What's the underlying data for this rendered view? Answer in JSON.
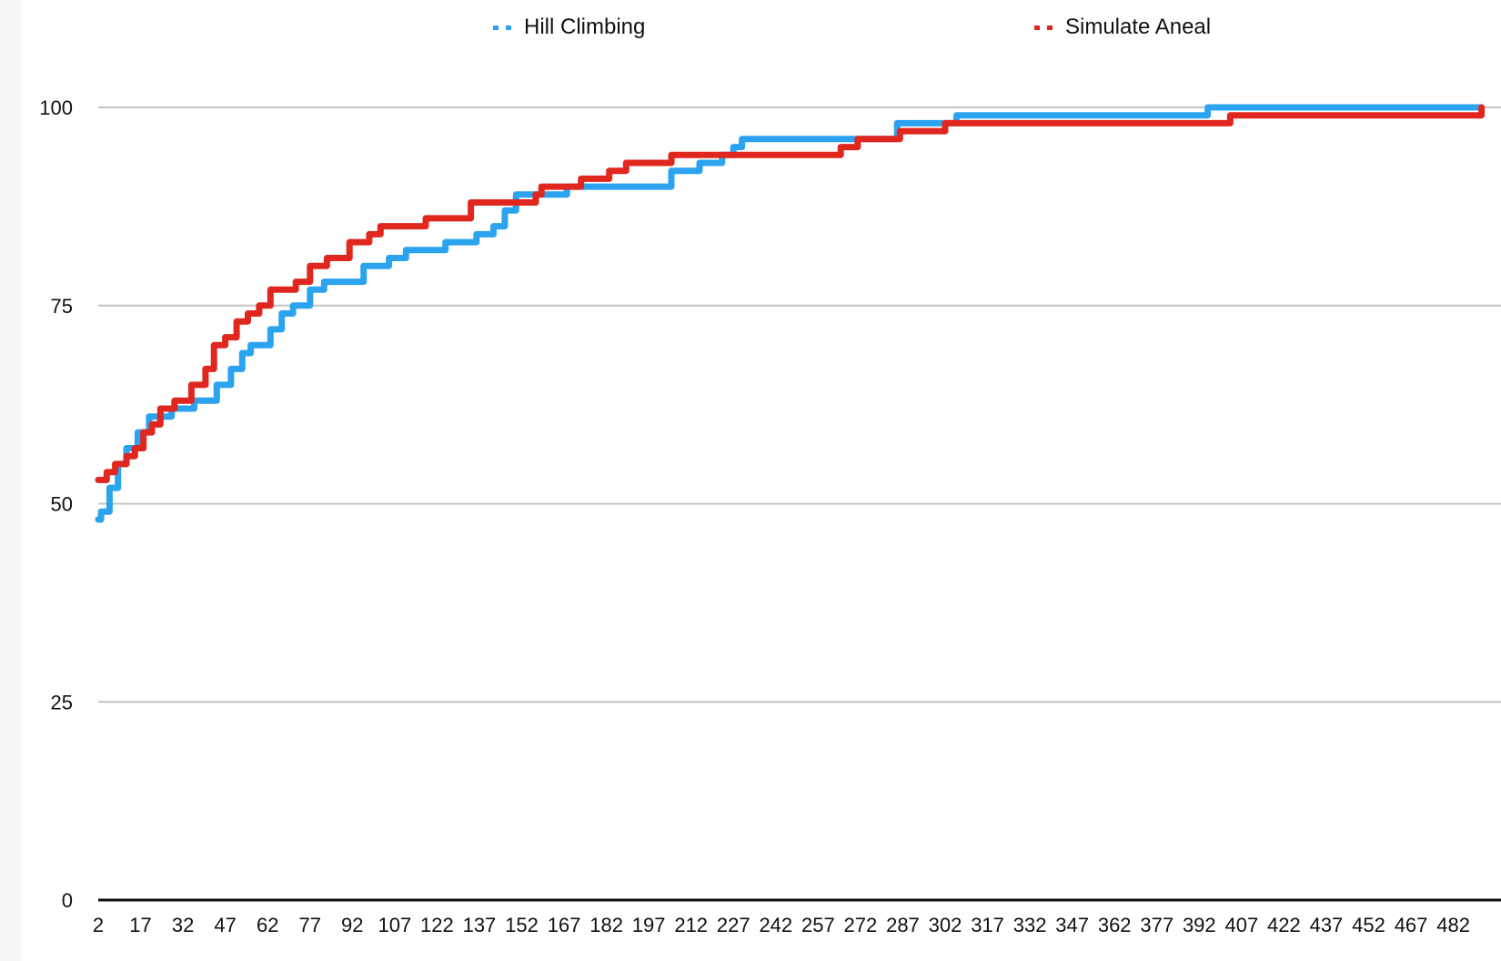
{
  "chart_data": {
    "type": "line",
    "title": "",
    "xlabel": "",
    "ylabel": "",
    "xlim": [
      2,
      492
    ],
    "ylim": [
      0,
      100
    ],
    "x_tick_labels": [
      "2",
      "17",
      "32",
      "47",
      "62",
      "77",
      "92",
      "107",
      "122",
      "137",
      "152",
      "167",
      "182",
      "197",
      "212",
      "227",
      "242",
      "257",
      "272",
      "287",
      "302",
      "317",
      "332",
      "347",
      "362",
      "377",
      "392",
      "407",
      "422",
      "437",
      "452",
      "467",
      "482"
    ],
    "y_tick_labels": [
      "0",
      "25",
      "50",
      "75",
      "100"
    ],
    "grid": true,
    "legend_position": "top",
    "series": [
      {
        "name": "Hill Climbing",
        "color": "#2ba3ef",
        "step_points": [
          [
            2,
            48
          ],
          [
            3,
            49
          ],
          [
            6,
            52
          ],
          [
            9,
            55
          ],
          [
            12,
            57
          ],
          [
            16,
            59
          ],
          [
            20,
            61
          ],
          [
            28,
            62
          ],
          [
            36,
            63
          ],
          [
            44,
            65
          ],
          [
            49,
            67
          ],
          [
            53,
            69
          ],
          [
            56,
            70
          ],
          [
            63,
            72
          ],
          [
            67,
            74
          ],
          [
            71,
            75
          ],
          [
            77,
            77
          ],
          [
            82,
            78
          ],
          [
            96,
            80
          ],
          [
            105,
            81
          ],
          [
            111,
            82
          ],
          [
            125,
            83
          ],
          [
            136,
            84
          ],
          [
            142,
            85
          ],
          [
            146,
            87
          ],
          [
            150,
            89
          ],
          [
            168,
            90
          ],
          [
            205,
            92
          ],
          [
            215,
            93
          ],
          [
            223,
            94
          ],
          [
            227,
            95
          ],
          [
            230,
            96
          ],
          [
            285,
            98
          ],
          [
            306,
            99
          ],
          [
            395,
            100
          ],
          [
            492,
            100
          ]
        ]
      },
      {
        "name": "Simulate Aneal",
        "color": "#e0271f",
        "step_points": [
          [
            2,
            53
          ],
          [
            5,
            54
          ],
          [
            8,
            55
          ],
          [
            12,
            56
          ],
          [
            15,
            57
          ],
          [
            18,
            59
          ],
          [
            21,
            60
          ],
          [
            24,
            62
          ],
          [
            29,
            63
          ],
          [
            35,
            65
          ],
          [
            40,
            67
          ],
          [
            43,
            70
          ],
          [
            47,
            71
          ],
          [
            51,
            73
          ],
          [
            55,
            74
          ],
          [
            59,
            75
          ],
          [
            63,
            77
          ],
          [
            72,
            78
          ],
          [
            77,
            80
          ],
          [
            83,
            81
          ],
          [
            91,
            83
          ],
          [
            98,
            84
          ],
          [
            102,
            85
          ],
          [
            118,
            86
          ],
          [
            134,
            88
          ],
          [
            157,
            89
          ],
          [
            159,
            90
          ],
          [
            173,
            91
          ],
          [
            183,
            92
          ],
          [
            189,
            93
          ],
          [
            205,
            94
          ],
          [
            265,
            95
          ],
          [
            271,
            96
          ],
          [
            286,
            97
          ],
          [
            302,
            98
          ],
          [
            403,
            99
          ],
          [
            492,
            100
          ]
        ]
      }
    ]
  }
}
